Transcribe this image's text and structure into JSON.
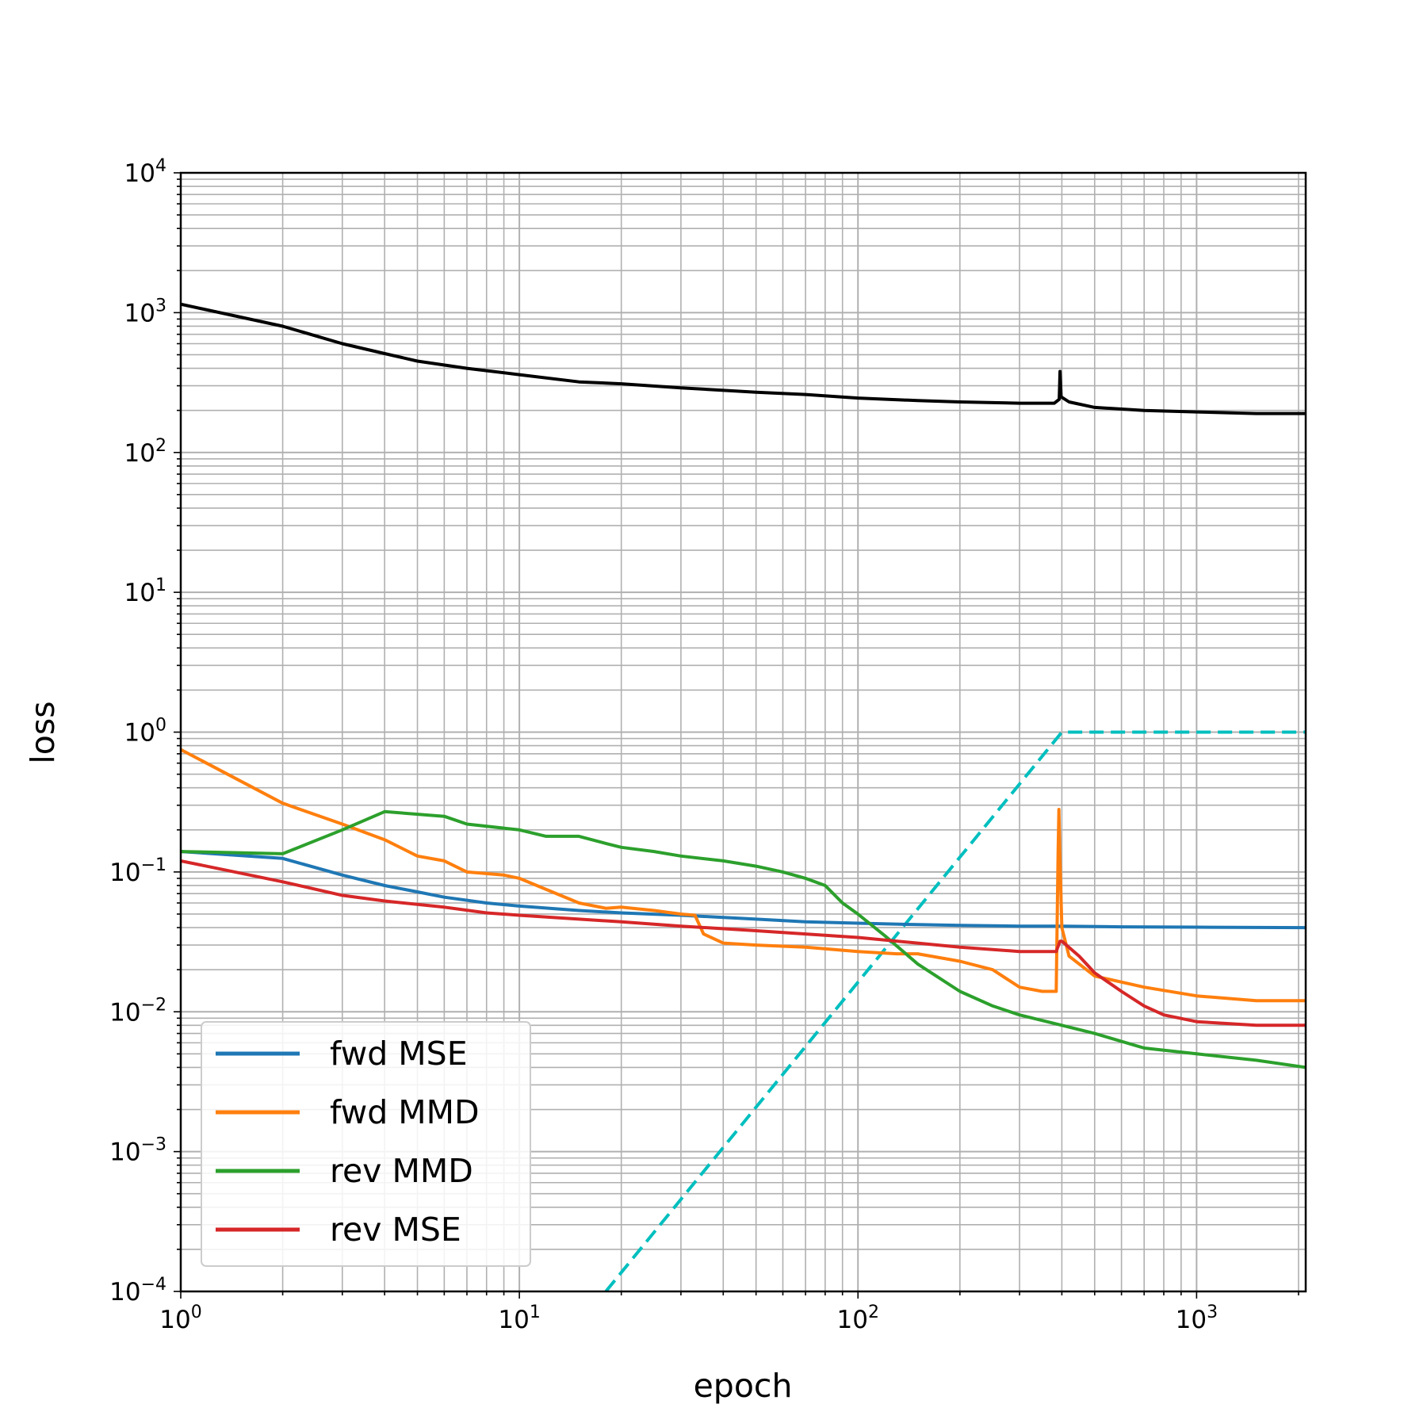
{
  "chart_data": {
    "type": "line",
    "xscale": "log",
    "yscale": "log",
    "xlabel": "epoch",
    "ylabel": "loss",
    "xlim": [
      1,
      2100
    ],
    "ylim": [
      0.0001,
      10000
    ],
    "grid": "major and minor",
    "legend_position": "lower-left",
    "x_ticks": [
      {
        "value": 1,
        "base": "10",
        "exp": "0"
      },
      {
        "value": 10,
        "base": "10",
        "exp": "1"
      },
      {
        "value": 100,
        "base": "10",
        "exp": "2"
      },
      {
        "value": 1000,
        "base": "10",
        "exp": "3"
      }
    ],
    "y_ticks": [
      {
        "value": 0.0001,
        "base": "10",
        "exp": "−4"
      },
      {
        "value": 0.001,
        "base": "10",
        "exp": "−3"
      },
      {
        "value": 0.01,
        "base": "10",
        "exp": "−2"
      },
      {
        "value": 0.1,
        "base": "10",
        "exp": "−1"
      },
      {
        "value": 1,
        "base": "10",
        "exp": "0"
      },
      {
        "value": 10,
        "base": "10",
        "exp": "1"
      },
      {
        "value": 100,
        "base": "10",
        "exp": "2"
      },
      {
        "value": 1000,
        "base": "10",
        "exp": "3"
      },
      {
        "value": 10000,
        "base": "10",
        "exp": "4"
      }
    ],
    "series": [
      {
        "name": "fwd MSE",
        "color": "#1f77b4",
        "in_legend": true,
        "points": [
          [
            1,
            0.14
          ],
          [
            2,
            0.125
          ],
          [
            3,
            0.095
          ],
          [
            4,
            0.08
          ],
          [
            5,
            0.072
          ],
          [
            6,
            0.066
          ],
          [
            8,
            0.06
          ],
          [
            10,
            0.057
          ],
          [
            15,
            0.053
          ],
          [
            20,
            0.051
          ],
          [
            30,
            0.049
          ],
          [
            50,
            0.046
          ],
          [
            70,
            0.044
          ],
          [
            100,
            0.043
          ],
          [
            150,
            0.042
          ],
          [
            200,
            0.0415
          ],
          [
            300,
            0.041
          ],
          [
            400,
            0.041
          ],
          [
            600,
            0.0405
          ],
          [
            1000,
            0.0403
          ],
          [
            2100,
            0.04
          ]
        ]
      },
      {
        "name": "fwd MMD",
        "color": "#ff7f0e",
        "in_legend": true,
        "points": [
          [
            1,
            0.75
          ],
          [
            2,
            0.31
          ],
          [
            3,
            0.22
          ],
          [
            4,
            0.17
          ],
          [
            5,
            0.13
          ],
          [
            6,
            0.12
          ],
          [
            7,
            0.1
          ],
          [
            9,
            0.095
          ],
          [
            10,
            0.09
          ],
          [
            12,
            0.075
          ],
          [
            15,
            0.06
          ],
          [
            18,
            0.055
          ],
          [
            20,
            0.056
          ],
          [
            25,
            0.053
          ],
          [
            30,
            0.05
          ],
          [
            33,
            0.049
          ],
          [
            35,
            0.036
          ],
          [
            40,
            0.031
          ],
          [
            50,
            0.03
          ],
          [
            70,
            0.029
          ],
          [
            100,
            0.027
          ],
          [
            130,
            0.026
          ],
          [
            150,
            0.026
          ],
          [
            200,
            0.023
          ],
          [
            250,
            0.02
          ],
          [
            300,
            0.015
          ],
          [
            350,
            0.014
          ],
          [
            385,
            0.014
          ],
          [
            390,
            0.14
          ],
          [
            392,
            0.28
          ],
          [
            395,
            0.12
          ],
          [
            400,
            0.04
          ],
          [
            420,
            0.025
          ],
          [
            500,
            0.018
          ],
          [
            700,
            0.015
          ],
          [
            1000,
            0.013
          ],
          [
            1500,
            0.012
          ],
          [
            2100,
            0.012
          ]
        ]
      },
      {
        "name": "rev MMD",
        "color": "#2ca02c",
        "in_legend": true,
        "points": [
          [
            1,
            0.14
          ],
          [
            2,
            0.135
          ],
          [
            3,
            0.2
          ],
          [
            4,
            0.27
          ],
          [
            6,
            0.25
          ],
          [
            7,
            0.22
          ],
          [
            10,
            0.2
          ],
          [
            12,
            0.18
          ],
          [
            15,
            0.18
          ],
          [
            18,
            0.16
          ],
          [
            20,
            0.15
          ],
          [
            25,
            0.14
          ],
          [
            30,
            0.13
          ],
          [
            40,
            0.12
          ],
          [
            50,
            0.11
          ],
          [
            60,
            0.1
          ],
          [
            70,
            0.09
          ],
          [
            80,
            0.08
          ],
          [
            90,
            0.06
          ],
          [
            100,
            0.05
          ],
          [
            120,
            0.035
          ],
          [
            150,
            0.022
          ],
          [
            200,
            0.014
          ],
          [
            250,
            0.011
          ],
          [
            300,
            0.0095
          ],
          [
            400,
            0.008
          ],
          [
            500,
            0.007
          ],
          [
            700,
            0.0055
          ],
          [
            1000,
            0.005
          ],
          [
            1500,
            0.0045
          ],
          [
            2100,
            0.004
          ]
        ]
      },
      {
        "name": "rev MSE",
        "color": "#d62728",
        "in_legend": true,
        "points": [
          [
            1,
            0.12
          ],
          [
            2,
            0.085
          ],
          [
            3,
            0.068
          ],
          [
            4,
            0.062
          ],
          [
            6,
            0.056
          ],
          [
            8,
            0.051
          ],
          [
            10,
            0.049
          ],
          [
            20,
            0.044
          ],
          [
            30,
            0.041
          ],
          [
            50,
            0.038
          ],
          [
            70,
            0.036
          ],
          [
            100,
            0.034
          ],
          [
            150,
            0.031
          ],
          [
            200,
            0.029
          ],
          [
            300,
            0.027
          ],
          [
            385,
            0.027
          ],
          [
            395,
            0.032
          ],
          [
            400,
            0.032
          ],
          [
            450,
            0.025
          ],
          [
            500,
            0.019
          ],
          [
            600,
            0.014
          ],
          [
            700,
            0.011
          ],
          [
            800,
            0.0095
          ],
          [
            1000,
            0.0085
          ],
          [
            1500,
            0.008
          ],
          [
            2100,
            0.008
          ]
        ]
      },
      {
        "name": "",
        "color": "#000000",
        "in_legend": false,
        "points": [
          [
            1,
            1150
          ],
          [
            2,
            800
          ],
          [
            3,
            600
          ],
          [
            4,
            510
          ],
          [
            5,
            450
          ],
          [
            7,
            400
          ],
          [
            10,
            360
          ],
          [
            15,
            320
          ],
          [
            20,
            310
          ],
          [
            30,
            290
          ],
          [
            50,
            270
          ],
          [
            70,
            260
          ],
          [
            100,
            245
          ],
          [
            150,
            235
          ],
          [
            200,
            230
          ],
          [
            300,
            225
          ],
          [
            380,
            225
          ],
          [
            393,
            240
          ],
          [
            395,
            380
          ],
          [
            398,
            250
          ],
          [
            420,
            230
          ],
          [
            500,
            210
          ],
          [
            700,
            200
          ],
          [
            1000,
            195
          ],
          [
            1500,
            190
          ],
          [
            2100,
            190
          ]
        ]
      },
      {
        "name": "",
        "color": "#00bfbf",
        "dashed": true,
        "in_legend": false,
        "points": [
          [
            18,
            0.0001
          ],
          [
            400,
            1
          ],
          [
            2100,
            1
          ]
        ]
      }
    ]
  }
}
